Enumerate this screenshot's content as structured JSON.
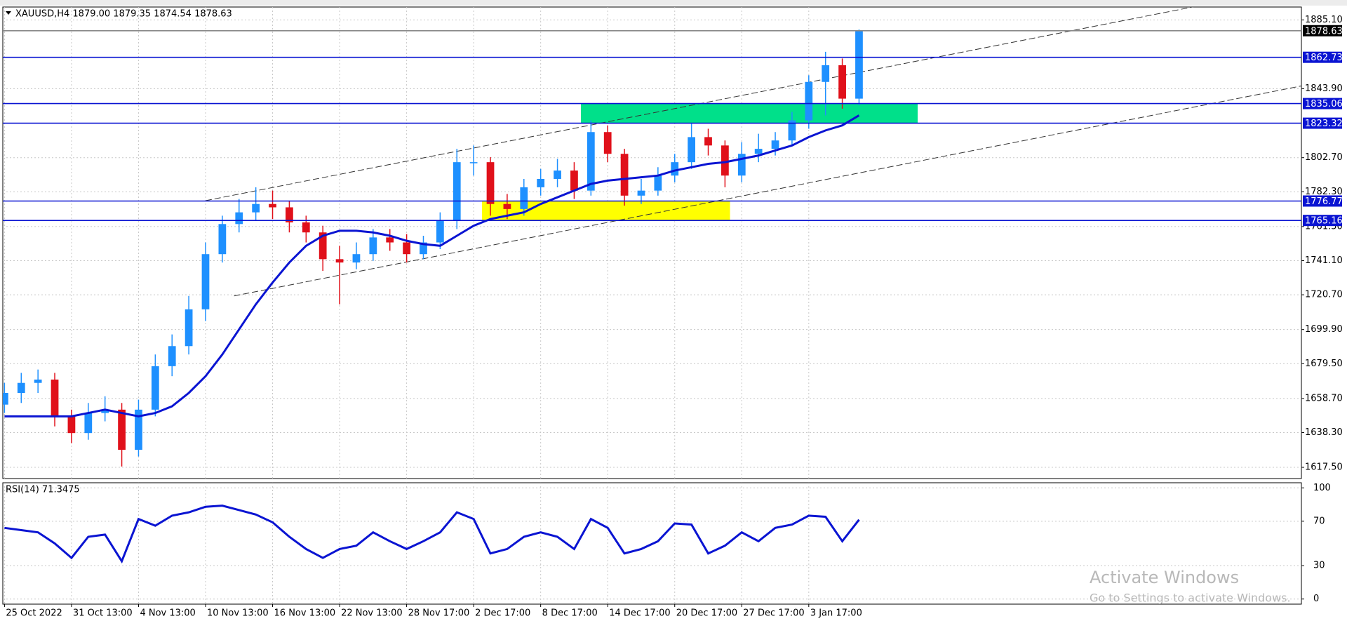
{
  "chart_data": [
    {
      "type": "candlestick",
      "title": "XAUUSD,H4  1879.00 1879.35 1874.54 1878.63",
      "xlim": [
        -0.1,
        77.4
      ],
      "ylim": [
        1610.8,
        1892.8
      ],
      "grid": true,
      "yticks": [
        {
          "value": 1885.1,
          "label": "1885.10"
        },
        {
          "value": 1843.9,
          "label": "1843.90"
        },
        {
          "value": 1802.7,
          "label": "1802.70"
        },
        {
          "value": 1782.3,
          "label": "1782.30"
        },
        {
          "value": 1761.5,
          "label": "1761.50"
        },
        {
          "value": 1741.1,
          "label": "1741.10"
        },
        {
          "value": 1720.7,
          "label": "1720.70"
        },
        {
          "value": 1699.9,
          "label": "1699.90"
        },
        {
          "value": 1679.5,
          "label": "1679.50"
        },
        {
          "value": 1658.7,
          "label": "1658.70"
        },
        {
          "value": 1638.3,
          "label": "1638.30"
        },
        {
          "value": 1617.5,
          "label": "1617.50"
        }
      ],
      "xticks": [
        {
          "value": 0,
          "label": "25 Oct 2022"
        },
        {
          "value": 4,
          "label": "31 Oct 13:00"
        },
        {
          "value": 8,
          "label": "4 Nov 13:00"
        },
        {
          "value": 12,
          "label": "10 Nov 13:00"
        },
        {
          "value": 16,
          "label": "16 Nov 13:00"
        },
        {
          "value": 20,
          "label": "22 Nov 13:00"
        },
        {
          "value": 24,
          "label": "28 Nov 17:00"
        },
        {
          "value": 28,
          "label": "2 Dec 17:00"
        },
        {
          "value": 32,
          "label": "8 Dec 17:00"
        },
        {
          "value": 36,
          "label": "14 Dec 17:00"
        },
        {
          "value": 40,
          "label": "20 Dec 17:00"
        },
        {
          "value": 44,
          "label": "27 Dec 17:00"
        },
        {
          "value": 48,
          "label": "3 Jan 17:00"
        }
      ],
      "up_color": "#1e90ff",
      "down_color": "#e0101a",
      "open": [
        1655,
        1662,
        1668,
        1670,
        1648,
        1638,
        1650,
        1652,
        1628,
        1652,
        1678,
        1690,
        1712,
        1745,
        1763,
        1770,
        1775,
        1773,
        1764,
        1758,
        1742,
        1740,
        1745,
        1755,
        1752,
        1745,
        1752,
        1765,
        1800,
        1800,
        1775,
        1772,
        1785,
        1790,
        1795,
        1783,
        1818,
        1805,
        1780,
        1783,
        1792,
        1800,
        1815,
        1810,
        1792,
        1805,
        1808,
        1813,
        1825,
        1848,
        1858,
        1838
      ],
      "high": [
        1668,
        1674,
        1676,
        1674,
        1652,
        1656,
        1660,
        1656,
        1658,
        1685,
        1697,
        1720,
        1752,
        1768,
        1778,
        1785,
        1783,
        1777,
        1768,
        1762,
        1750,
        1752,
        1760,
        1760,
        1757,
        1756,
        1770,
        1808,
        1810,
        1803,
        1781,
        1790,
        1796,
        1802,
        1800,
        1825,
        1822,
        1808,
        1790,
        1797,
        1805,
        1823,
        1820,
        1813,
        1812,
        1817,
        1818,
        1830,
        1852,
        1866,
        1862,
        1879.35
      ],
      "low": [
        1650,
        1656,
        1662,
        1642,
        1632,
        1634,
        1645,
        1618,
        1624,
        1648,
        1672,
        1685,
        1705,
        1740,
        1758,
        1765,
        1766,
        1758,
        1752,
        1735,
        1715,
        1736,
        1741,
        1747,
        1740,
        1742,
        1748,
        1760,
        1792,
        1768,
        1766,
        1768,
        1780,
        1785,
        1778,
        1780,
        1800,
        1774,
        1775,
        1780,
        1788,
        1796,
        1804,
        1785,
        1788,
        1800,
        1804,
        1810,
        1820,
        1828,
        1832,
        1834
      ],
      "close": [
        1662,
        1668,
        1670,
        1648,
        1638,
        1650,
        1652,
        1628,
        1652,
        1678,
        1690,
        1712,
        1745,
        1763,
        1770,
        1775,
        1773,
        1764,
        1758,
        1742,
        1740,
        1745,
        1755,
        1752,
        1745,
        1752,
        1765,
        1800,
        1800,
        1775,
        1772,
        1785,
        1790,
        1795,
        1783,
        1818,
        1805,
        1780,
        1783,
        1792,
        1800,
        1815,
        1810,
        1792,
        1805,
        1808,
        1813,
        1825,
        1848,
        1858,
        1838,
        1878.63
      ],
      "ma": {
        "color": "#0a14d2",
        "values": [
          1648,
          1648,
          1648,
          1648,
          1648,
          1650,
          1652,
          1650,
          1648,
          1650,
          1654,
          1662,
          1672,
          1685,
          1700,
          1715,
          1728,
          1740,
          1750,
          1756,
          1759,
          1759,
          1758,
          1756,
          1753,
          1751,
          1750,
          1756,
          1762,
          1766,
          1768,
          1770,
          1775,
          1779,
          1783,
          1787,
          1789,
          1790,
          1791,
          1792,
          1795,
          1797,
          1799,
          1800,
          1802,
          1804,
          1807,
          1810,
          1815,
          1819,
          1822,
          1828
        ]
      },
      "levels": [
        {
          "value": 1862.73,
          "color": "#0a14d2"
        },
        {
          "value": 1835.06,
          "color": "#0a14d2"
        },
        {
          "value": 1823.32,
          "color": "#0a14d2"
        },
        {
          "value": 1776.77,
          "color": "#0a14d2"
        },
        {
          "value": 1765.16,
          "color": "#0a14d2"
        }
      ],
      "current_price": {
        "value": 1878.63,
        "color": "#000000"
      },
      "zones": [
        {
          "x": [
            34.4,
            54.5
          ],
          "y": [
            1823.32,
            1835.06
          ],
          "color": "#00e08a"
        },
        {
          "x": [
            28.5,
            43.3
          ],
          "y": [
            1765.16,
            1776.77
          ],
          "color": "#ffff00"
        }
      ],
      "trendlines": [
        {
          "points": [
            [
              12,
              1777
            ],
            [
              71,
              1893
            ]
          ]
        },
        {
          "points": [
            [
              13.7,
              1720
            ],
            [
              77.4,
              1845.6
            ]
          ]
        }
      ]
    },
    {
      "type": "line",
      "title": "RSI(14) 71.3475",
      "ylim": [
        -4.6,
        104.6
      ],
      "yticks": [
        100,
        70,
        30,
        0
      ],
      "color": "#0a14d2",
      "values": [
        64,
        62,
        60,
        50,
        37,
        56,
        58,
        34,
        72,
        66,
        75,
        78,
        83,
        84,
        80,
        76,
        69,
        56,
        45,
        37,
        45,
        48,
        60,
        52,
        45,
        52,
        60,
        78,
        72,
        41,
        45,
        56,
        60,
        56,
        45,
        72,
        64,
        41,
        45,
        52,
        68,
        67,
        41,
        48,
        60,
        52,
        64,
        67,
        75,
        74,
        52,
        71.3475
      ]
    }
  ],
  "overlay": {
    "title": "Activate Windows",
    "subtitle": "Go to Settings to activate Windows."
  }
}
